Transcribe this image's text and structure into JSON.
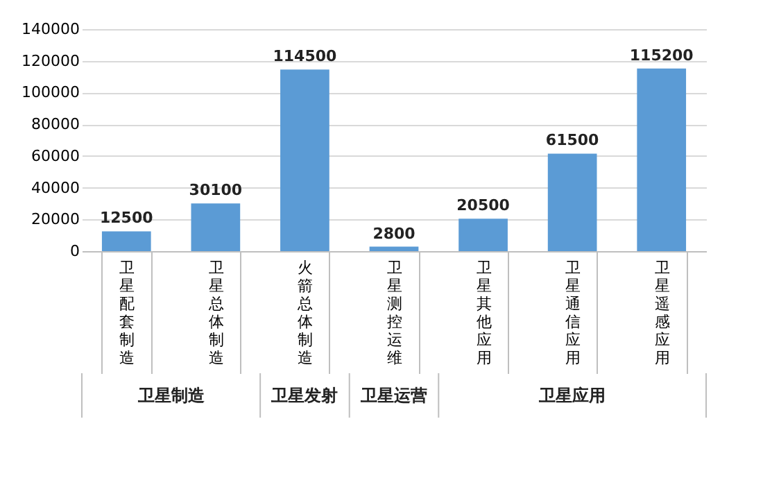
{
  "chart_data": {
    "type": "bar",
    "categories": [
      "卫星配套制造",
      "卫星总体制造",
      "火箭总体制造",
      "卫星测控运维",
      "卫星其他应用",
      "卫星通信应用",
      "卫星遥感应用"
    ],
    "values": [
      12500,
      30100,
      114500,
      2800,
      20500,
      61500,
      115200
    ],
    "color": "#5b9bd5",
    "ylim": [
      0,
      140000
    ],
    "yticks": [
      0,
      20000,
      40000,
      60000,
      80000,
      100000,
      120000,
      140000
    ],
    "grid": "y",
    "data_labels": true,
    "annotations": [
      "卫星制造",
      "卫星发射",
      "卫星运营",
      "卫星应用"
    ]
  }
}
